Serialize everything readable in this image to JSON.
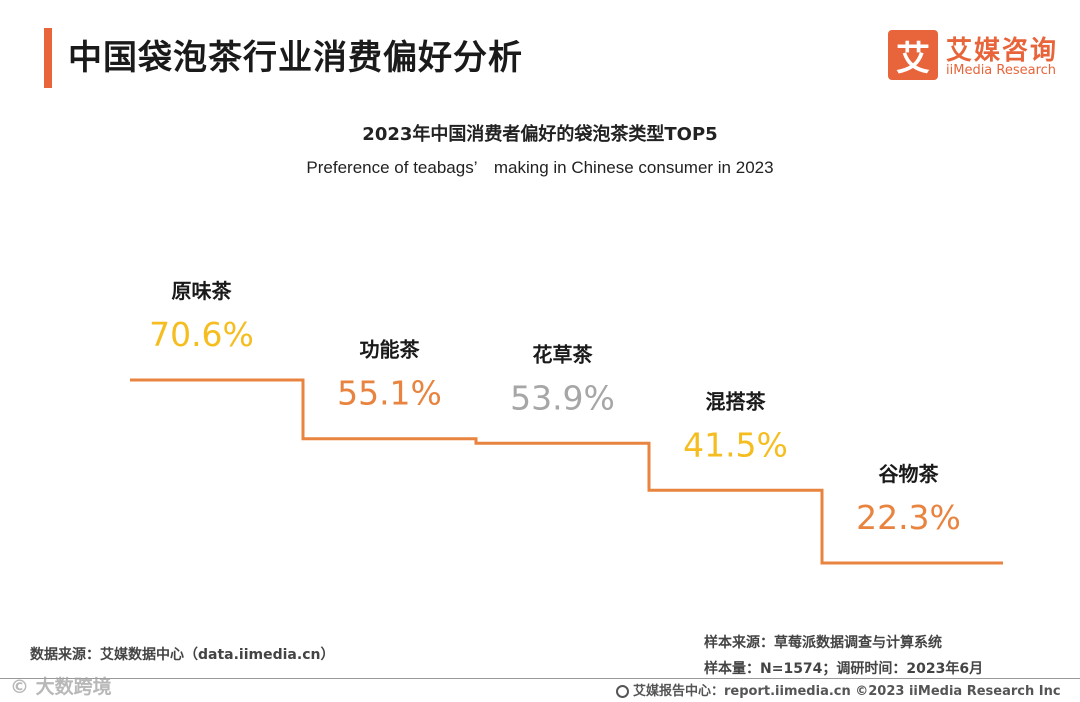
{
  "header": {
    "title": "中国袋泡茶行业消费偏好分析"
  },
  "logo": {
    "mark": "艾",
    "name_cn": "艾媒咨询",
    "name_en": "iiMedia Research"
  },
  "chart_data": {
    "type": "step",
    "title": "2023年中国消费者偏好的袋泡茶类型TOP5",
    "subtitle": "Preference of teabags’　making in Chinese consumer in 2023",
    "categories": [
      "原味茶",
      "功能茶",
      "花草茶",
      "混搭茶",
      "谷物茶"
    ],
    "values": [
      70.6,
      55.1,
      53.9,
      41.5,
      22.3
    ],
    "value_labels": [
      "70.6%",
      "55.1%",
      "53.9%",
      "41.5%",
      "22.3%"
    ],
    "value_colors": [
      "#f5bd1f",
      "#e8843f",
      "#a6a6a6",
      "#f5bd1f",
      "#e8843f"
    ],
    "line_color": "#e8843f",
    "unit": "%"
  },
  "source": {
    "data_source": "数据来源：艾媒数据中心（data.iimedia.cn）",
    "sample_source": "样本来源：草莓派数据调查与计算系统",
    "sample_size": "样本量：N=1574；调研时间：2023年6月"
  },
  "footer": {
    "text": "艾媒报告中心：report.iimedia.cn  ©2023  iiMedia Research  Inc"
  },
  "watermark": {
    "text": "© 大数跨境"
  }
}
